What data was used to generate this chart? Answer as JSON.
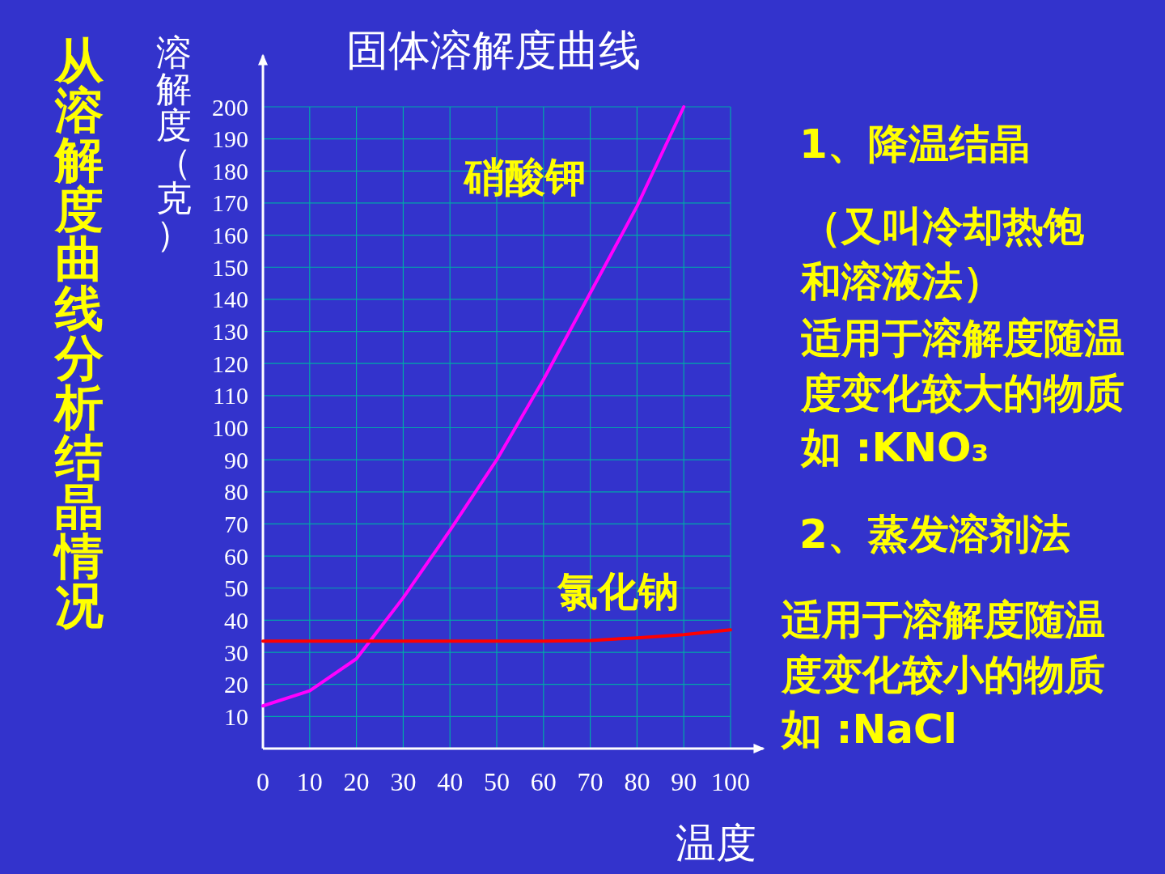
{
  "chart_data": {
    "type": "line",
    "title": "固体溶解度曲线",
    "xlabel": "温度",
    "ylabel": "溶解度（克）",
    "x": [
      0,
      10,
      20,
      30,
      40,
      50,
      60,
      70,
      80,
      90
    ],
    "series": [
      {
        "name": "硝酸钾",
        "color": "#ff00ff",
        "values": [
          13.3,
          18,
          28,
          47,
          68,
          90,
          115,
          142,
          169,
          200
        ]
      },
      {
        "name": "氯化钠",
        "color": "#ff0000",
        "x": [
          0,
          10,
          20,
          30,
          40,
          50,
          60,
          70,
          80,
          90,
          100
        ],
        "values": [
          33.5,
          33.5,
          33.5,
          33.5,
          33.5,
          33.5,
          33.5,
          33.7,
          34.5,
          35.5,
          37
        ]
      }
    ],
    "xlim": [
      0,
      107
    ],
    "ylim": [
      0,
      216
    ],
    "xticks": [
      0,
      10,
      20,
      30,
      40,
      50,
      60,
      70,
      80,
      90,
      100
    ],
    "yticks": [
      10,
      20,
      30,
      40,
      50,
      60,
      70,
      80,
      90,
      100,
      110,
      120,
      130,
      140,
      150,
      160,
      170,
      180,
      190,
      200
    ],
    "grid": true,
    "annotations": [
      "从溶解度曲线分析结晶情况",
      "1、降温结晶",
      "（又叫冷却热饱和溶液法）",
      "适用于溶解度随温度变化较大的物质如 :KNO₃",
      "2、蒸发溶剂法",
      "适用于溶解度随温度变化较小的物质如 :NaCl"
    ]
  }
}
